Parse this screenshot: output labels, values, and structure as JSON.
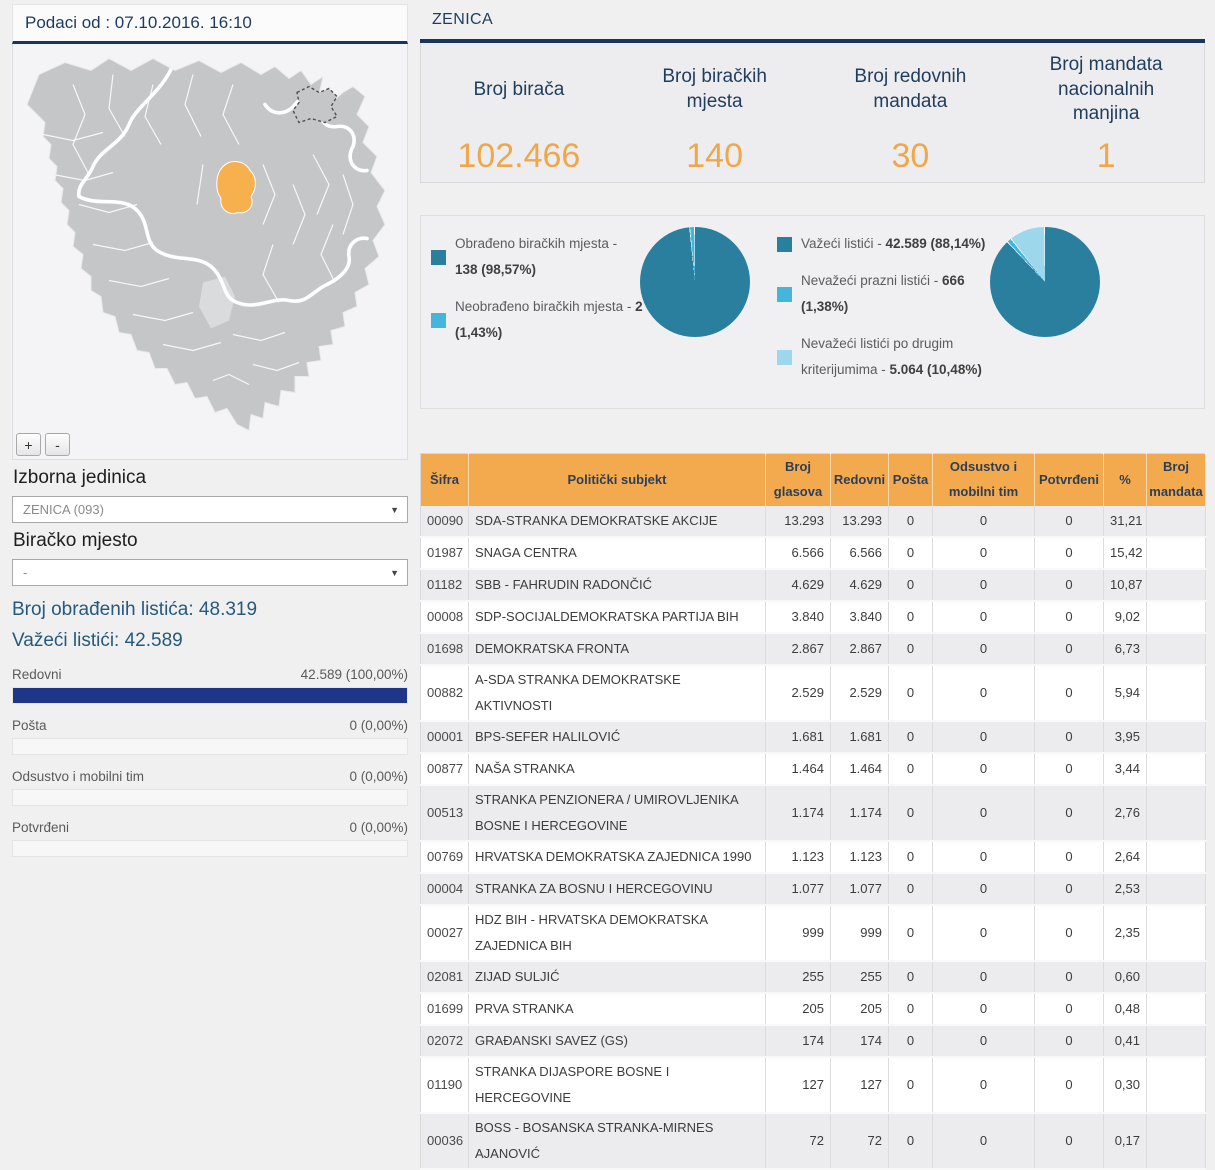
{
  "left": {
    "title": "Podaci od : 07.10.2016. 16:10",
    "map": {
      "zoom_in": "+",
      "zoom_out": "-",
      "highlight_color": "#f7b04e",
      "region_color": "#c5c6c8",
      "highlighted_region": "Zenica"
    },
    "izborna_jedinica": {
      "label": "Izborna jedinica",
      "value": "ZENICA (093)"
    },
    "biracko_mjesto": {
      "label": "Biračko mjesto",
      "value": "-"
    },
    "processed": "Broj obrađenih listića: 48.319",
    "valid": "Važeći listići: 42.589",
    "bars": [
      {
        "label": "Redovni",
        "value": "42.589 (100,00%)",
        "pct": 100
      },
      {
        "label": "Pošta",
        "value": "0 (0,00%)",
        "pct": 0
      },
      {
        "label": "Odsustvo i mobilni tim",
        "value": "0 (0,00%)",
        "pct": 0
      },
      {
        "label": "Potvrđeni",
        "value": "0 (0,00%)",
        "pct": 0
      }
    ]
  },
  "right": {
    "title": "ZENICA",
    "stats": [
      {
        "label": "Broj birača",
        "value": "102.466"
      },
      {
        "label": "Broj biračkih mjesta",
        "value": "140"
      },
      {
        "label": "Broj redovnih mandata",
        "value": "30"
      },
      {
        "label": "Broj mandata nacionalnih manjina",
        "value": "1"
      }
    ],
    "accent_navy": "#17365d",
    "accent_orange": "#eea84b",
    "table_header_orange": "#f3aa4f"
  },
  "chart_data": [
    {
      "type": "pie",
      "name": "biracka-mjesta",
      "legend_position": "left",
      "slices": [
        {
          "label": "Obrađeno biračkih mjesta",
          "value": "138",
          "pct": "98,57%",
          "color": "#2a7f9e"
        },
        {
          "label": "Neobrađeno biračkih mjesta",
          "value": "2",
          "pct": "1,43%",
          "color": "#46b5da"
        }
      ]
    },
    {
      "type": "pie",
      "name": "listici",
      "legend_position": "left",
      "slices": [
        {
          "label": "Važeći listići",
          "value": "42.589",
          "pct": "88,14%",
          "color": "#2a7f9e"
        },
        {
          "label": "Nevažeći prazni listići",
          "value": "666",
          "pct": "1,38%",
          "color": "#46b5da"
        },
        {
          "label": "Nevažeći listići po drugim kriterijumima",
          "value": "5.064",
          "pct": "10,48%",
          "color": "#9dd7eb"
        }
      ]
    }
  ],
  "table": {
    "columns": [
      "Šifra",
      "Politički subjekt",
      "Broj glasova",
      "Redovni",
      "Pošta",
      "Odsustvo i mobilni tim",
      "Potvrđeni",
      "%",
      "Broj mandata"
    ],
    "rows": [
      [
        "00090",
        "SDA-STRANKA DEMOKRATSKE AKCIJE",
        "13.293",
        "13.293",
        "0",
        "0",
        "0",
        "31,21",
        ""
      ],
      [
        "01987",
        "SNAGA CENTRA",
        "6.566",
        "6.566",
        "0",
        "0",
        "0",
        "15,42",
        ""
      ],
      [
        "01182",
        "SBB - FAHRUDIN RADONČIĆ",
        "4.629",
        "4.629",
        "0",
        "0",
        "0",
        "10,87",
        ""
      ],
      [
        "00008",
        "SDP-SOCIJALDEMOKRATSKA PARTIJA BIH",
        "3.840",
        "3.840",
        "0",
        "0",
        "0",
        "9,02",
        ""
      ],
      [
        "01698",
        "DEMOKRATSKA FRONTA",
        "2.867",
        "2.867",
        "0",
        "0",
        "0",
        "6,73",
        ""
      ],
      [
        "00882",
        "A-SDA STRANKA DEMOKRATSKE AKTIVNOSTI",
        "2.529",
        "2.529",
        "0",
        "0",
        "0",
        "5,94",
        ""
      ],
      [
        "00001",
        "BPS-SEFER HALILOVIĆ",
        "1.681",
        "1.681",
        "0",
        "0",
        "0",
        "3,95",
        ""
      ],
      [
        "00877",
        "NAŠA STRANKA",
        "1.464",
        "1.464",
        "0",
        "0",
        "0",
        "3,44",
        ""
      ],
      [
        "00513",
        "STRANKA PENZIONERA / UMIROVLJENIKA BOSNE I HERCEGOVINE",
        "1.174",
        "1.174",
        "0",
        "0",
        "0",
        "2,76",
        ""
      ],
      [
        "00769",
        "HRVATSKA DEMOKRATSKA ZAJEDNICA 1990",
        "1.123",
        "1.123",
        "0",
        "0",
        "0",
        "2,64",
        ""
      ],
      [
        "00004",
        "STRANKA ZA BOSNU I HERCEGOVINU",
        "1.077",
        "1.077",
        "0",
        "0",
        "0",
        "2,53",
        ""
      ],
      [
        "00027",
        "HDZ BIH - HRVATSKA DEMOKRATSKA ZAJEDNICA BIH",
        "999",
        "999",
        "0",
        "0",
        "0",
        "2,35",
        ""
      ],
      [
        "02081",
        "ZIJAD SULJIĆ",
        "255",
        "255",
        "0",
        "0",
        "0",
        "0,60",
        ""
      ],
      [
        "01699",
        "PRVA STRANKA",
        "205",
        "205",
        "0",
        "0",
        "0",
        "0,48",
        ""
      ],
      [
        "02072",
        "GRAĐANSKI SAVEZ (GS)",
        "174",
        "174",
        "0",
        "0",
        "0",
        "0,41",
        ""
      ],
      [
        "01190",
        "STRANKA DIJASPORE BOSNE I HERCEGOVINE",
        "127",
        "127",
        "0",
        "0",
        "0",
        "0,30",
        ""
      ],
      [
        "00036",
        "BOSS - BOSANSKA STRANKA-MIRNES AJANOVIĆ",
        "72",
        "72",
        "0",
        "0",
        "0",
        "0,17",
        ""
      ]
    ]
  }
}
